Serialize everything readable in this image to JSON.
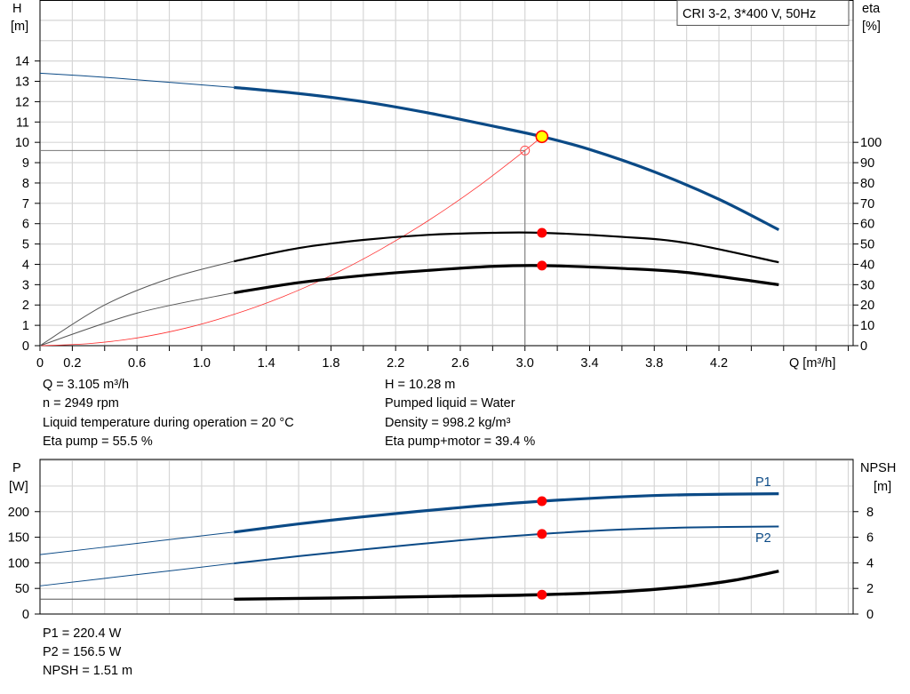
{
  "chart_data": [
    {
      "type": "line",
      "title": "CRI 3-2, 3*400 V, 50Hz",
      "xlabel": "Q [m³/h]",
      "ylabel_left": [
        "H",
        "[m]"
      ],
      "ylabel_right": [
        "eta",
        "[%]"
      ],
      "xlim": [
        0,
        5.03
      ],
      "ylim_left": [
        0,
        17
      ],
      "ylim_right": [
        0,
        170
      ],
      "grid": true,
      "x_ticks": [
        "0",
        "0.2",
        "0.6",
        "1.0",
        "1.4",
        "1.8",
        "2.2",
        "2.6",
        "3.0",
        "3.4",
        "3.8",
        "4.2"
      ],
      "x_tick_values": [
        0,
        0.2,
        0.6,
        1.0,
        1.4,
        1.8,
        2.2,
        2.6,
        3.0,
        3.4,
        3.8,
        4.2
      ],
      "y_ticks_left": [
        0,
        1,
        2,
        3,
        4,
        5,
        6,
        7,
        8,
        9,
        10,
        11,
        12,
        13,
        14
      ],
      "y_ticks_right": [
        0,
        10,
        20,
        30,
        40,
        50,
        60,
        70,
        80,
        90,
        100
      ],
      "series": [
        {
          "axis": "left",
          "color": "#0b4a86",
          "x": [
            0,
            0.4,
            0.8,
            1.2,
            1.6,
            2.0,
            2.4,
            2.8,
            3.105,
            3.4,
            3.8,
            4.2,
            4.57
          ],
          "y": [
            13.4,
            13.2,
            12.95,
            12.7,
            12.4,
            12.0,
            11.45,
            10.8,
            10.28,
            9.65,
            8.55,
            7.2,
            5.7
          ]
        },
        {
          "axis": "right",
          "color": "#000000",
          "x": [
            0,
            0.4,
            0.8,
            1.2,
            1.6,
            2.0,
            2.4,
            2.8,
            3.105,
            3.6,
            4.0,
            4.57
          ],
          "y": [
            0,
            20,
            33,
            41.5,
            48,
            52,
            54.5,
            55.5,
            55.5,
            53.5,
            50.5,
            41
          ]
        },
        {
          "axis": "right",
          "color": "#000000",
          "x": [
            0,
            0.6,
            1.2,
            1.6,
            2.0,
            2.4,
            2.8,
            3.105,
            3.6,
            4.0,
            4.57
          ],
          "y": [
            0,
            16,
            26,
            31,
            34.5,
            37,
            39,
            39.4,
            38,
            36,
            30
          ]
        },
        {
          "axis": "left",
          "color": "#ff3030",
          "x": [
            0,
            0.3,
            0.6,
            0.9,
            1.2,
            1.5,
            1.8,
            2.1,
            2.4,
            2.7,
            3.0,
            3.105
          ],
          "y": [
            0,
            0.1,
            0.38,
            0.86,
            1.54,
            2.4,
            3.45,
            4.7,
            6.14,
            7.77,
            9.6,
            10.28
          ]
        }
      ],
      "operating_point": {
        "Q": 3.105,
        "H": 10.28,
        "eta_pump": 55.5,
        "eta_total": 39.4
      },
      "requested_point": {
        "Q": 3.0,
        "H": 9.6
      }
    },
    {
      "type": "line",
      "ylabel_left": [
        "P",
        "[W]"
      ],
      "ylabel_right": [
        "NPSH",
        "[m]"
      ],
      "xlim": [
        0,
        5.03
      ],
      "ylim_left": [
        0,
        302
      ],
      "ylim_right": [
        0,
        12.08
      ],
      "grid": true,
      "y_ticks_left": [
        0,
        50,
        100,
        150,
        200
      ],
      "y_ticks_right": [
        0,
        2,
        4,
        6,
        8
      ],
      "series": [
        {
          "name": "P1",
          "axis": "left",
          "color": "#0b4a86",
          "x": [
            0,
            0.6,
            1.2,
            1.6,
            2.0,
            2.6,
            3.105,
            3.6,
            4.0,
            4.57
          ],
          "y": [
            116,
            138,
            160,
            176,
            190,
            208,
            220.4,
            229,
            233,
            235
          ]
        },
        {
          "name": "P2",
          "axis": "left",
          "color": "#0b4a86",
          "x": [
            0,
            0.6,
            1.2,
            1.6,
            2.0,
            2.6,
            3.105,
            3.6,
            4.0,
            4.57
          ],
          "y": [
            55,
            77,
            99,
            113,
            126,
            144,
            156.5,
            165,
            169,
            171
          ]
        },
        {
          "axis": "right",
          "color": "#000000",
          "x": [
            0,
            1.2,
            2.0,
            2.6,
            3.105,
            3.6,
            4.0,
            4.3,
            4.57
          ],
          "y": [
            1.16,
            1.16,
            1.28,
            1.4,
            1.51,
            1.75,
            2.15,
            2.65,
            3.35
          ]
        }
      ],
      "operating_point": {
        "Q": 3.105,
        "P1": 220.4,
        "P2": 156.5,
        "NPSH": 1.51
      }
    }
  ],
  "info": {
    "left": [
      "Q = 3.105 m³/h",
      "n = 2949 rpm",
      "Liquid temperature during operation = 20 °C",
      "Eta pump = 55.5 %"
    ],
    "right": [
      "H = 10.28 m",
      "Pumped liquid = Water",
      "Density = 998.2 kg/m³",
      "Eta pump+motor = 39.4 %"
    ],
    "bottom": [
      "P1 = 220.4 W",
      "P2 = 156.5 W",
      "NPSH = 1.51 m"
    ]
  }
}
